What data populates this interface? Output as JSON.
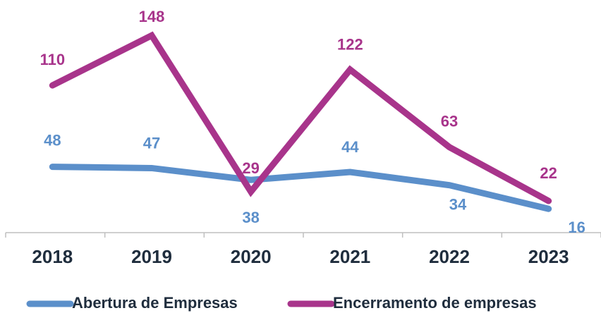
{
  "chart_data": {
    "type": "line",
    "categories": [
      "2018",
      "2019",
      "2020",
      "2021",
      "2022",
      "2023"
    ],
    "series": [
      {
        "name": "Abertura de Empresas",
        "color": "#5b8fca",
        "values": [
          48,
          47,
          38,
          44,
          34,
          16
        ]
      },
      {
        "name": "Encerramento de empresas",
        "color": "#a8348b",
        "values": [
          110,
          148,
          29,
          122,
          63,
          22
        ]
      }
    ],
    "ylim": [
      0,
      160
    ],
    "grid": false,
    "legend": "bottom"
  }
}
